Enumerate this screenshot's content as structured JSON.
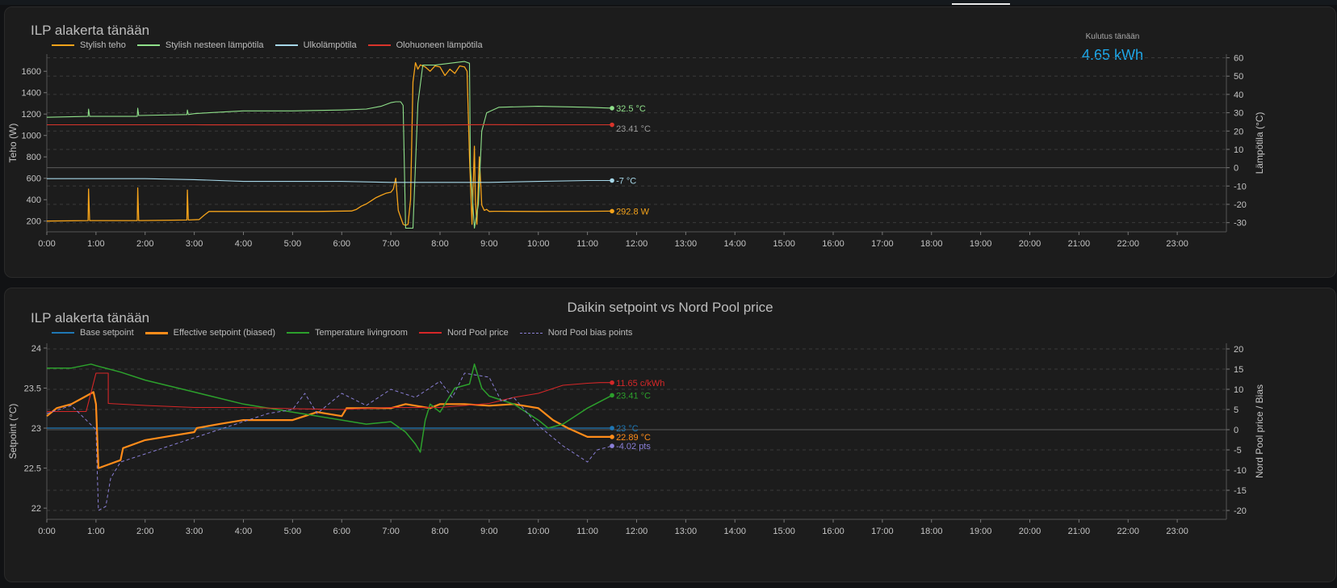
{
  "card1": {
    "chart_title": "ILP alakerta tänään",
    "stat_label": "Kulutus tänään",
    "stat_value": "4.65 kWh",
    "legend": [
      {
        "name": "Stylish teho",
        "color": "#f5a31a"
      },
      {
        "name": "Stylish nesteen lämpötila",
        "color": "#8fe08a"
      },
      {
        "name": "Ulkolämpötila",
        "color": "#a6d7e8"
      },
      {
        "name": "Olohuoneen lämpötila",
        "color": "#d9342b"
      }
    ],
    "end_labels": {
      "nesteen": "32.5 °C",
      "olohuone": "23.41 °C",
      "ulko": "-7 °C",
      "teho": "292.8 W"
    }
  },
  "card2": {
    "card_title": "Daikin setpoint vs Nord Pool price",
    "chart_title": "ILP alakerta tänään",
    "legend": [
      {
        "name": "Base setpoint",
        "color": "#1f77b4",
        "style": "solid"
      },
      {
        "name": "Effective setpoint (biased)",
        "color": "#ff8c1a",
        "style": "thick"
      },
      {
        "name": "Temperature livingroom",
        "color": "#2ca02c",
        "style": "solid"
      },
      {
        "name": "Nord Pool price",
        "color": "#d62728",
        "style": "solid"
      },
      {
        "name": "Nord Pool bias points",
        "color": "#8a7fd6",
        "style": "dashed"
      }
    ],
    "end_labels": {
      "price": "11.65 c/kWh",
      "temp": "23.41 °C",
      "base": "23 °C",
      "eff": "22.89 °C",
      "bias": "-4.02 pts"
    }
  },
  "chart_data": [
    {
      "type": "line",
      "x_ticks": [
        "0:00",
        "1:00",
        "2:00",
        "3:00",
        "4:00",
        "5:00",
        "6:00",
        "7:00",
        "8:00",
        "9:00",
        "10:00",
        "11:00",
        "12:00",
        "13:00",
        "14:00",
        "15:00",
        "16:00",
        "17:00",
        "18:00",
        "19:00",
        "20:00",
        "21:00",
        "22:00",
        "23:00"
      ],
      "xlim": [
        0,
        24
      ],
      "ylabel": "Teho (W)",
      "y_ticks": [
        200,
        400,
        600,
        800,
        1000,
        1200,
        1400,
        1600
      ],
      "ylim": [
        100,
        1760
      ],
      "y2label": "Lämpötila (°C)",
      "y2_ticks": [
        -30,
        -20,
        -10,
        0,
        10,
        20,
        30,
        40,
        50,
        60
      ],
      "y2lim": [
        -35,
        62
      ],
      "grid": true,
      "series": [
        {
          "name": "Stylish teho",
          "axis": "y",
          "color": "#f5a31a",
          "width": 1.3,
          "x": [
            0,
            0.84,
            0.85,
            0.87,
            1.84,
            1.85,
            1.87,
            2.85,
            2.86,
            2.88,
            3.1,
            3.2,
            3.3,
            4.5,
            5.5,
            6.2,
            6.3,
            6.4,
            6.5,
            6.6,
            6.7,
            6.8,
            6.9,
            7.0,
            7.05,
            7.1,
            7.15,
            7.25,
            7.3,
            7.35,
            7.4,
            7.45,
            7.5,
            7.55,
            7.6,
            7.7,
            7.8,
            7.9,
            8.0,
            8.1,
            8.2,
            8.3,
            8.4,
            8.5,
            8.55,
            8.6,
            8.65,
            8.7,
            8.72,
            8.75,
            8.8,
            8.85,
            8.9,
            8.95,
            9.0,
            9.1,
            9.2,
            10.0,
            11.0,
            11.5
          ],
          "y": [
            200,
            205,
            500,
            205,
            205,
            510,
            205,
            210,
            490,
            210,
            215,
            255,
            290,
            290,
            290,
            295,
            310,
            340,
            360,
            390,
            420,
            440,
            460,
            470,
            500,
            600,
            300,
            170,
            160,
            170,
            400,
            1500,
            1680,
            1620,
            1660,
            1640,
            1600,
            1650,
            1640,
            1560,
            1620,
            1580,
            1650,
            1640,
            1600,
            800,
            170,
            900,
            400,
            170,
            800,
            350,
            300,
            310,
            290,
            292,
            292,
            290,
            292,
            292.8
          ]
        },
        {
          "name": "Stylish nesteen lämpötila",
          "axis": "y2",
          "color": "#8fe08a",
          "width": 1.1,
          "x": [
            0,
            0.84,
            0.85,
            0.87,
            1.84,
            1.85,
            1.87,
            2.85,
            2.86,
            2.88,
            3.0,
            3.3,
            4.0,
            5.0,
            6.0,
            6.5,
            6.8,
            7.0,
            7.1,
            7.2,
            7.25,
            7.3,
            7.35,
            7.45,
            7.55,
            7.65,
            7.9,
            8.2,
            8.5,
            8.6,
            8.62,
            8.7,
            8.78,
            8.85,
            8.95,
            9.2,
            10.0,
            11.0,
            11.5
          ],
          "y": [
            27.5,
            28,
            32,
            28,
            28,
            32.5,
            28.5,
            29,
            31.5,
            29,
            29.5,
            30,
            31,
            31,
            31.5,
            32,
            33.5,
            35.5,
            36,
            36,
            34,
            -33,
            -33,
            -33,
            35,
            56,
            56,
            57,
            58,
            57,
            0,
            -33,
            -20,
            20,
            30,
            33,
            33.5,
            33,
            32.5
          ]
        },
        {
          "name": "Ulkolämpötila",
          "axis": "y2",
          "color": "#a6d7e8",
          "width": 1.1,
          "x": [
            0,
            2,
            3,
            4,
            5,
            6,
            7,
            8,
            9,
            10,
            11,
            11.5
          ],
          "y": [
            -6,
            -6,
            -6.5,
            -7.5,
            -7.5,
            -7.5,
            -8,
            -8,
            -8,
            -7.5,
            -7,
            -7
          ]
        },
        {
          "name": "Olohuoneen lämpötila",
          "axis": "y2",
          "color": "#d9342b",
          "width": 1.1,
          "x": [
            0,
            3,
            6,
            8,
            9,
            10,
            11,
            11.5
          ],
          "y": [
            23.4,
            23.4,
            23.3,
            23.35,
            23.5,
            23.4,
            23.4,
            23.41
          ]
        }
      ]
    },
    {
      "type": "line",
      "x_ticks": [
        "0:00",
        "1:00",
        "2:00",
        "3:00",
        "4:00",
        "5:00",
        "6:00",
        "7:00",
        "8:00",
        "9:00",
        "10:00",
        "11:00",
        "12:00",
        "13:00",
        "14:00",
        "15:00",
        "16:00",
        "17:00",
        "18:00",
        "19:00",
        "20:00",
        "21:00",
        "22:00",
        "23:00"
      ],
      "xlim": [
        0,
        24
      ],
      "ylabel": "Setpoint (°C)",
      "y_ticks": [
        22,
        22.5,
        23,
        23.5,
        24
      ],
      "ylim": [
        21.86,
        24.06
      ],
      "y2label": "Nord Pool price / Bias",
      "y2_ticks": [
        -20,
        -15,
        -10,
        -5,
        0,
        5,
        10,
        15,
        20
      ],
      "y2lim": [
        -22.2,
        21.4
      ],
      "grid": true,
      "series": [
        {
          "name": "Base setpoint",
          "axis": "y",
          "color": "#1f77b4",
          "width": 1.2,
          "x": [
            0,
            11.5
          ],
          "y": [
            23,
            23
          ]
        },
        {
          "name": "Effective setpoint (biased)",
          "axis": "y",
          "color": "#ff8c1a",
          "width": 2.2,
          "x": [
            0,
            0.2,
            0.5,
            0.8,
            0.95,
            1.0,
            1.05,
            1.5,
            1.55,
            2.0,
            2.5,
            3.0,
            3.05,
            3.5,
            4.0,
            4.5,
            5.0,
            5.5,
            6.0,
            6.1,
            6.5,
            7.0,
            7.3,
            7.5,
            7.8,
            8.0,
            8.5,
            9.0,
            9.5,
            10.0,
            10.3,
            10.6,
            11.0,
            11.5
          ],
          "y": [
            23.15,
            23.25,
            23.3,
            23.4,
            23.45,
            23.3,
            22.5,
            22.6,
            22.75,
            22.85,
            22.9,
            22.95,
            23.0,
            23.05,
            23.1,
            23.1,
            23.1,
            23.2,
            23.15,
            23.25,
            23.25,
            23.25,
            23.3,
            23.28,
            23.25,
            23.3,
            23.3,
            23.28,
            23.3,
            23.25,
            23.1,
            23.0,
            22.89,
            22.89
          ]
        },
        {
          "name": "Temperature livingroom",
          "axis": "y",
          "color": "#2ca02c",
          "width": 1.5,
          "x": [
            0,
            0.5,
            0.9,
            1.0,
            1.5,
            2.0,
            3.0,
            4.0,
            5.0,
            6.0,
            6.5,
            7.0,
            7.3,
            7.5,
            7.6,
            7.7,
            7.8,
            8.0,
            8.3,
            8.6,
            8.7,
            8.85,
            9.0,
            9.5,
            10.0,
            10.2,
            10.5,
            11.0,
            11.5
          ],
          "y": [
            23.75,
            23.75,
            23.8,
            23.78,
            23.7,
            23.6,
            23.45,
            23.3,
            23.2,
            23.1,
            23.05,
            23.08,
            22.95,
            22.8,
            22.7,
            23.1,
            23.3,
            23.2,
            23.5,
            23.55,
            23.8,
            23.5,
            23.4,
            23.3,
            23.1,
            23.0,
            23.05,
            23.25,
            23.41
          ]
        },
        {
          "name": "Nord Pool price",
          "axis": "y2",
          "color": "#d62728",
          "width": 1.1,
          "x": [
            0,
            0.8,
            1.0,
            1.25,
            1.25,
            2.0,
            3.0,
            4.0,
            5.0,
            6.0,
            7.0,
            8.0,
            9.0,
            9.5,
            10.0,
            10.25,
            10.5,
            11.0,
            11.25,
            11.5
          ],
          "y": [
            4.5,
            4.5,
            14,
            14,
            6.5,
            6,
            5.5,
            5.5,
            5.2,
            5,
            5.5,
            5.5,
            6.5,
            8,
            9,
            10,
            11,
            11.5,
            11.65,
            11.65
          ]
        },
        {
          "name": "Nord Pool bias points",
          "axis": "y2",
          "color": "#8a7fd6",
          "width": 1,
          "dashed": true,
          "x": [
            0,
            0.5,
            1.0,
            1.05,
            1.2,
            1.3,
            1.5,
            2.0,
            2.5,
            3.0,
            3.5,
            4.0,
            4.5,
            5.0,
            5.25,
            5.5,
            6.0,
            6.5,
            7.0,
            7.5,
            8.0,
            8.25,
            8.5,
            9.0,
            9.25,
            9.5,
            10.0,
            10.5,
            11.0,
            11.2,
            11.5
          ],
          "y": [
            4,
            6,
            0,
            -20,
            -19,
            -12,
            -8,
            -6,
            -4,
            -2,
            0,
            2,
            4,
            5,
            9,
            4,
            9,
            6,
            10,
            8,
            12,
            8,
            14,
            13,
            7,
            8,
            1,
            -4,
            -8,
            -5,
            -4.02
          ]
        }
      ]
    }
  ]
}
